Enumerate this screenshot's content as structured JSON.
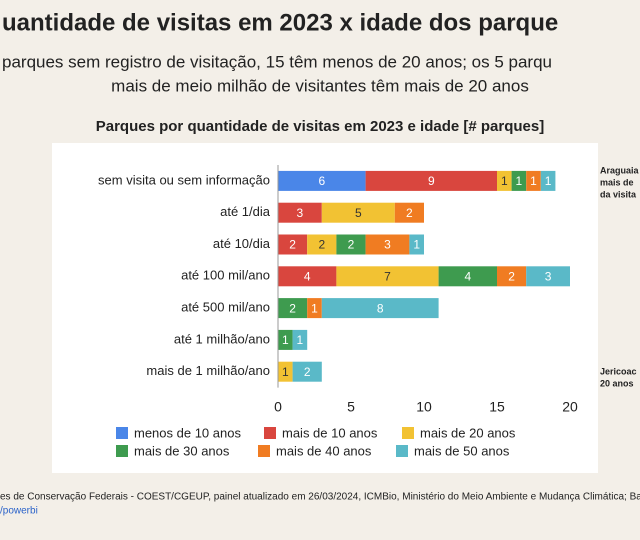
{
  "title": "uantidade de visitas em 2023 x idade dos parque",
  "subtitle": [
    "parques sem registro de visitação, 15 têm menos de 20 anos; os 5 parqu",
    "mais de meio milhão de visitantes têm mais de 20 anos"
  ],
  "side_notes": [
    [
      "Araguaia",
      "mais de",
      "da visita"
    ],
    [
      "Jericoac",
      "20 anos"
    ]
  ],
  "footer": [
    "es de Conservação Federais - COEST/CGEUP, painel atualizado em 26/03/2024, ICMBio, Ministério do Meio Ambiente e Mudança Climática; Bas",
    "/powerbi"
  ],
  "chart_data": {
    "type": "stacked-barh",
    "title": "Parques por quantidade de visitas em 2023 e idade [# parques]",
    "categories": [
      "sem visita ou sem informação",
      "até 1/dia",
      "até 10/dia",
      "até 100 mil/ano",
      "até 500 mil/ano",
      "até 1 milhão/ano",
      "mais de 1 milhão/ano"
    ],
    "series": [
      {
        "name": "menos de 10 anos",
        "color": "#4a86e8",
        "values": [
          6,
          null,
          null,
          null,
          null,
          null,
          null
        ]
      },
      {
        "name": "mais de 10 anos",
        "color": "#d9463e",
        "values": [
          9,
          3,
          2,
          4,
          null,
          null,
          null
        ]
      },
      {
        "name": "mais de 20 anos",
        "color": "#f2c233",
        "values": [
          1,
          5,
          2,
          7,
          null,
          null,
          1
        ]
      },
      {
        "name": "mais de 30 anos",
        "color": "#3e9b4f",
        "values": [
          1,
          null,
          2,
          4,
          2,
          1,
          null
        ]
      },
      {
        "name": "mais de 40 anos",
        "color": "#f07c22",
        "values": [
          1,
          2,
          3,
          2,
          1,
          null,
          null
        ]
      },
      {
        "name": "mais de 50 anos",
        "color": "#5ab9c8",
        "values": [
          1,
          null,
          1,
          3,
          8,
          1,
          2
        ]
      }
    ],
    "xlim": [
      0,
      20
    ],
    "xticks": [
      0,
      5,
      10,
      15,
      20
    ],
    "grid": false
  }
}
